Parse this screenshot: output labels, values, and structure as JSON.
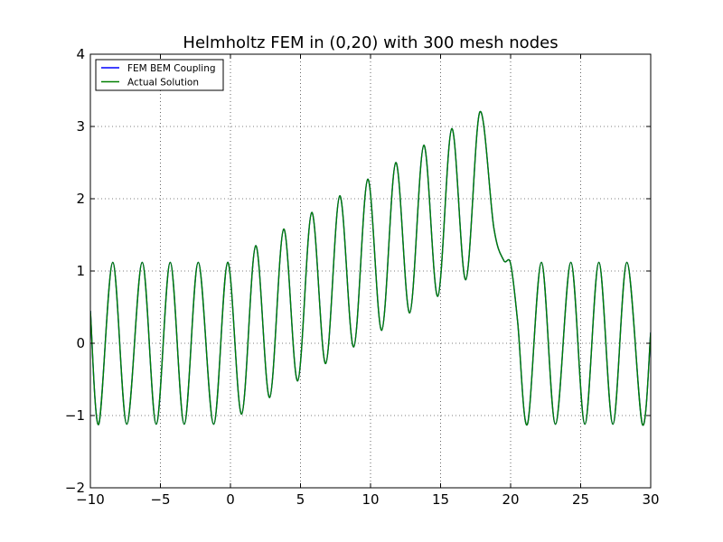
{
  "chart_data": {
    "type": "line",
    "title": "Helmholtz FEM in (0,20) with 300 mesh nodes",
    "xlabel": "",
    "ylabel": "",
    "xlim": [
      -10,
      30
    ],
    "ylim": [
      -2,
      4
    ],
    "grid": true,
    "legend_position": "top-left",
    "x_ticks": [
      -10,
      -5,
      0,
      5,
      10,
      15,
      20,
      25,
      30
    ],
    "x_tick_labels": [
      "−10",
      "−5",
      "0",
      "5",
      "10",
      "15",
      "20",
      "25",
      "30"
    ],
    "y_ticks": [
      -2,
      -1,
      0,
      1,
      2,
      3,
      4
    ],
    "y_tick_labels": [
      "−2",
      "−1",
      "0",
      "1",
      "2",
      "3",
      "4"
    ],
    "series": [
      {
        "name": "FEM BEM Coupling",
        "color": "#0000ff",
        "x": [
          -10.0,
          -9.4,
          -8.4,
          -7.4,
          -6.3,
          -5.3,
          -4.3,
          -3.3,
          -2.3,
          -1.2,
          -0.2,
          0.8,
          1.8,
          2.8,
          3.8,
          4.8,
          5.8,
          6.8,
          7.8,
          8.8,
          9.8,
          10.8,
          11.8,
          12.8,
          13.8,
          14.8,
          15.8,
          16.8,
          17.8,
          18.8,
          19.5,
          20.0,
          20.5,
          21.2,
          22.2,
          23.2,
          24.3,
          25.3,
          26.3,
          27.3,
          28.3,
          29.4,
          30.0
        ],
        "y": [
          0.45,
          -1.12,
          1.12,
          -1.12,
          1.12,
          -1.12,
          1.12,
          -1.12,
          1.12,
          -1.12,
          1.12,
          -0.98,
          1.35,
          -0.75,
          1.58,
          -0.52,
          1.81,
          -0.28,
          2.04,
          -0.05,
          2.27,
          0.18,
          2.5,
          0.42,
          2.74,
          0.65,
          2.97,
          0.88,
          3.2,
          1.6,
          1.15,
          1.1,
          0.3,
          -1.12,
          1.12,
          -1.12,
          1.12,
          -1.12,
          1.12,
          -1.12,
          1.12,
          -1.12,
          0.15
        ]
      },
      {
        "name": "Actual Solution",
        "color": "#007f00",
        "x": [
          -10.0,
          -9.4,
          -8.4,
          -7.4,
          -6.3,
          -5.3,
          -4.3,
          -3.3,
          -2.3,
          -1.2,
          -0.2,
          0.8,
          1.8,
          2.8,
          3.8,
          4.8,
          5.8,
          6.8,
          7.8,
          8.8,
          9.8,
          10.8,
          11.8,
          12.8,
          13.8,
          14.8,
          15.8,
          16.8,
          17.8,
          18.8,
          19.5,
          20.0,
          20.5,
          21.2,
          22.2,
          23.2,
          24.3,
          25.3,
          26.3,
          27.3,
          28.3,
          29.4,
          30.0
        ],
        "y": [
          0.45,
          -1.12,
          1.12,
          -1.12,
          1.12,
          -1.12,
          1.12,
          -1.12,
          1.12,
          -1.12,
          1.12,
          -0.98,
          1.35,
          -0.75,
          1.58,
          -0.52,
          1.81,
          -0.28,
          2.04,
          -0.05,
          2.27,
          0.18,
          2.5,
          0.42,
          2.74,
          0.65,
          2.97,
          0.88,
          3.2,
          1.6,
          1.15,
          1.1,
          0.3,
          -1.12,
          1.12,
          -1.12,
          1.12,
          -1.12,
          1.12,
          -1.12,
          1.12,
          -1.12,
          0.15
        ]
      }
    ]
  }
}
